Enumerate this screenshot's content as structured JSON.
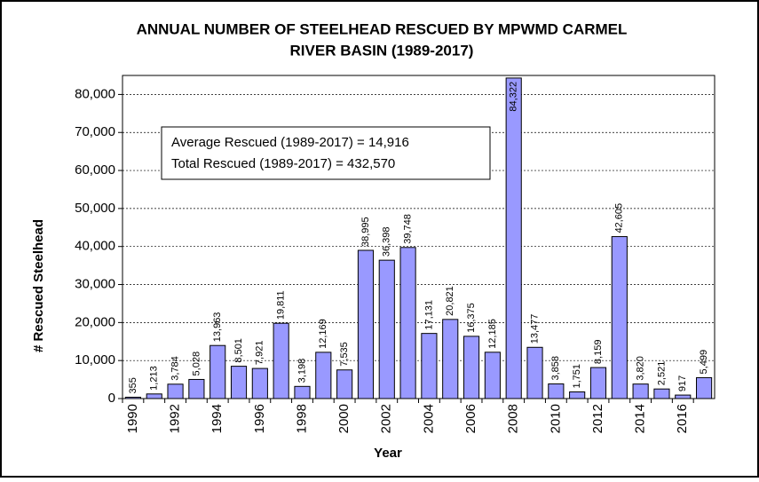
{
  "chart_data": {
    "type": "bar",
    "title": [
      "ANNUAL NUMBER OF STEELHEAD RESCUED BY MPWMD CARMEL",
      "RIVER BASIN  (1989-2017)"
    ],
    "x_label": "Year",
    "y_label": "# Rescued Steelhead",
    "annotations": [
      "Average Rescued (1989-2017) = 14,916",
      "Total Rescued (1989-2017) = 432,570"
    ],
    "categories": [
      "1990",
      null,
      "1992",
      null,
      "1994",
      null,
      "1996",
      null,
      "1998",
      null,
      "2000",
      null,
      "2002",
      null,
      "2004",
      null,
      "2006",
      null,
      "2008",
      null,
      "2010",
      null,
      "2012",
      null,
      "2014",
      null,
      "2016",
      null
    ],
    "values": [
      355,
      1213,
      3784,
      5028,
      13963,
      8501,
      7921,
      19811,
      3198,
      12169,
      7535,
      38995,
      36398,
      39748,
      17131,
      20821,
      16375,
      12185,
      84322,
      13477,
      3858,
      1751,
      8159,
      42605,
      3820,
      2521,
      917,
      5499
    ],
    "value_labels": [
      "355",
      "1,213",
      "3,784",
      "5,028",
      "13,963",
      "8,501",
      "7,921",
      "19,811",
      "3,198",
      "12,169",
      "7,535",
      "38,995",
      "36,398",
      "39,748",
      "17,131",
      "20,821",
      "16,375",
      "12,185",
      "84,322",
      "13,477",
      "3,858",
      "1,751",
      "8,159",
      "42,605",
      "3,820",
      "2,521",
      "917",
      "5,499"
    ],
    "color": "#9999ff",
    "ylim": [
      0,
      85000
    ],
    "yticks": [
      0,
      {
        "value": 10000,
        "label": "10,000"
      },
      {
        "value": 20000,
        "label": "20,000"
      },
      {
        "value": 30000,
        "label": "30,000"
      },
      {
        "value": 40000,
        "label": "40,000"
      },
      {
        "value": 50000,
        "label": "50,000"
      },
      {
        "value": 60000,
        "label": "60,000"
      },
      {
        "value": 70000,
        "label": "70,000"
      },
      {
        "value": 80000,
        "label": "80,000"
      }
    ],
    "grid": true
  }
}
